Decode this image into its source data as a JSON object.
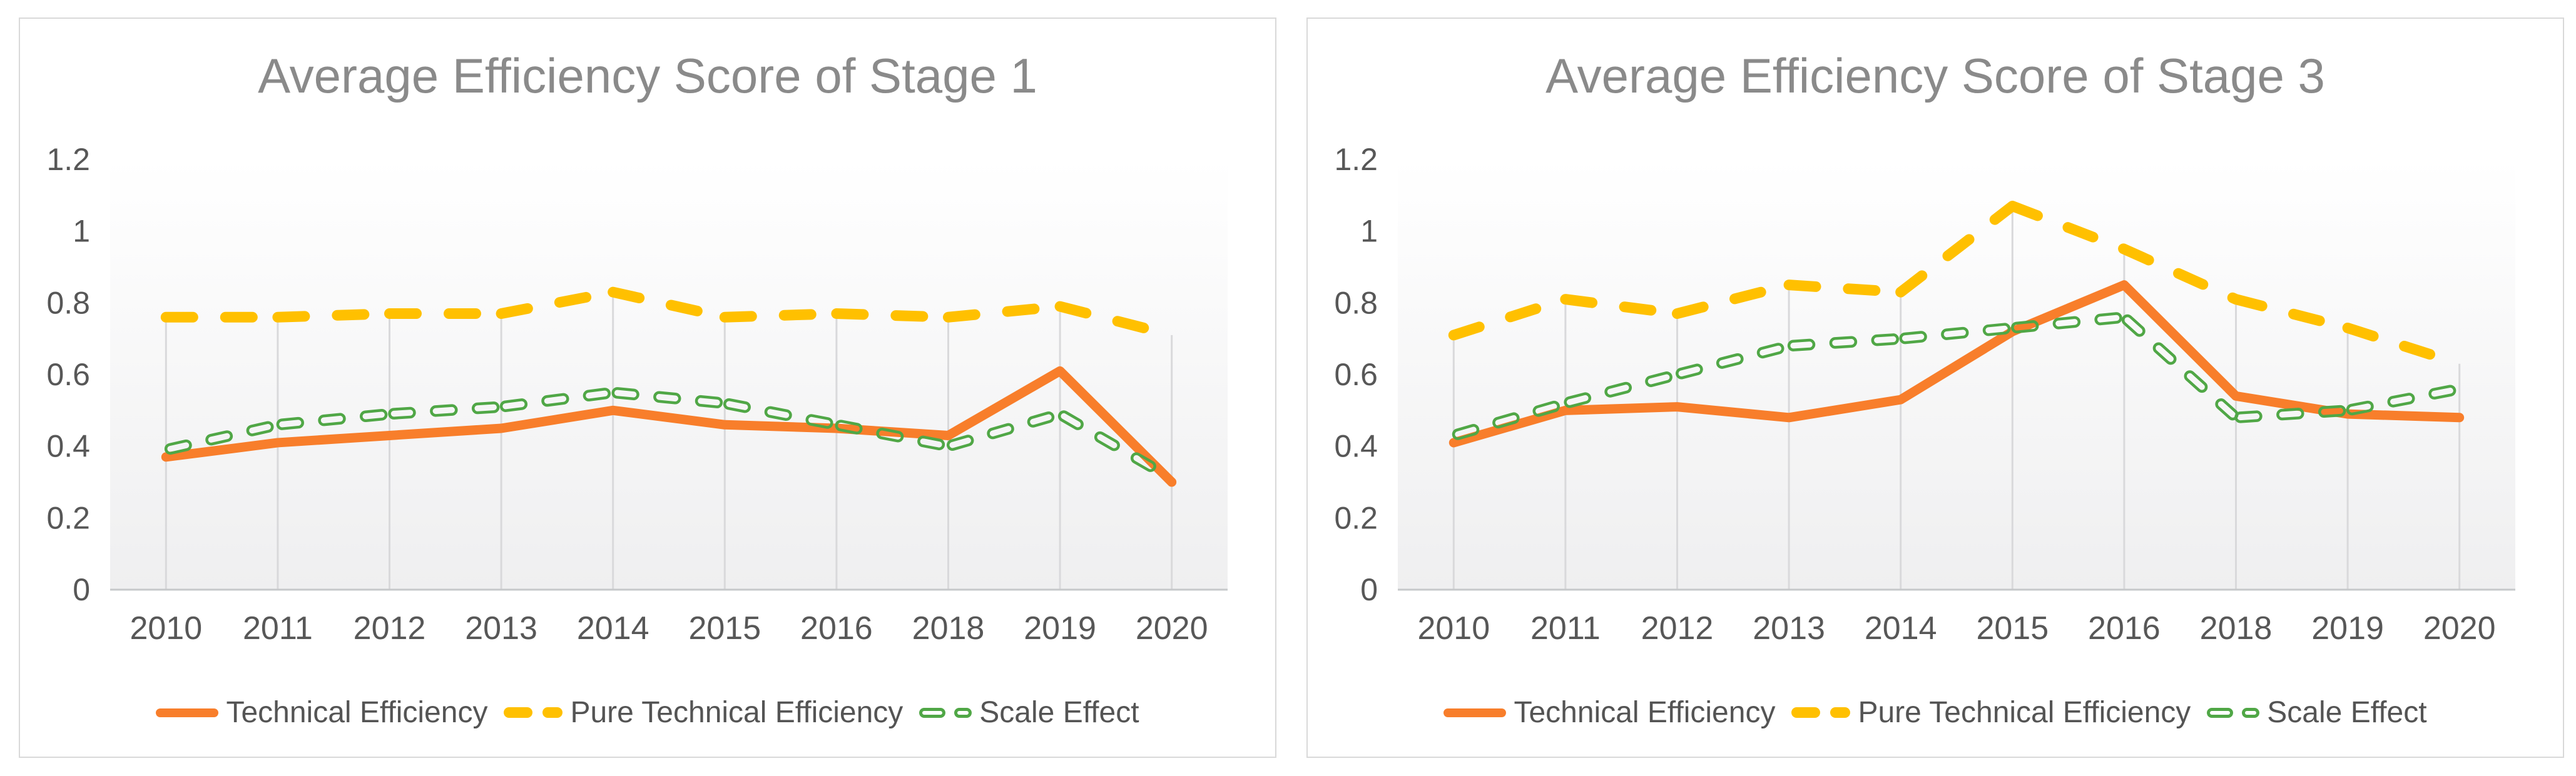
{
  "palette": {
    "page_background": "#FFFFFF",
    "panel_border": "#D9D9D9",
    "plot_bg_top": "#FFFFFF",
    "plot_bg_bottom": "#EFEFF0",
    "drop_line": "#D9D9DB",
    "axis_line": "#C6C8CA",
    "title_text": "#8A8A8A",
    "tick_text": "#575757",
    "legend_text": "#545454"
  },
  "chart_data": [
    {
      "type": "line",
      "title": "Average Efficiency Score of Stage 1",
      "categories": [
        "2010",
        "2011",
        "2012",
        "2013",
        "2014",
        "2015",
        "2016",
        "2018",
        "2019",
        "2020"
      ],
      "y_ticks": [
        "0",
        "0.2",
        "0.4",
        "0.6",
        "0.8",
        "1",
        "1.2"
      ],
      "ylim": [
        0,
        1.2
      ],
      "grid": "vertical-drop-lines",
      "legend_position": "bottom",
      "series": [
        {
          "name": "Technical Efficiency",
          "color": "#F87E2B",
          "line_style": "solid",
          "values": [
            0.37,
            0.41,
            0.43,
            0.45,
            0.5,
            0.46,
            0.45,
            0.43,
            0.61,
            0.3
          ]
        },
        {
          "name": "Pure Technical Efficiency",
          "color": "#FFC000",
          "line_style": "dashed",
          "values": [
            0.76,
            0.76,
            0.77,
            0.77,
            0.83,
            0.76,
            0.77,
            0.76,
            0.79,
            0.71
          ]
        },
        {
          "name": "Scale Effect",
          "color": "#50A746",
          "line_style": "hollow-dash",
          "values": [
            0.39,
            0.46,
            0.49,
            0.51,
            0.55,
            0.52,
            0.46,
            0.4,
            0.49,
            0.31
          ]
        }
      ]
    },
    {
      "type": "line",
      "title": "Average Efficiency Score of Stage 3",
      "categories": [
        "2010",
        "2011",
        "2012",
        "2013",
        "2014",
        "2015",
        "2016",
        "2018",
        "2019",
        "2020"
      ],
      "y_ticks": [
        "0",
        "0.2",
        "0.4",
        "0.6",
        "0.8",
        "1",
        "1.2"
      ],
      "ylim": [
        0,
        1.2
      ],
      "grid": "vertical-drop-lines",
      "legend_position": "bottom",
      "series": [
        {
          "name": "Technical Efficiency",
          "color": "#F87E2B",
          "line_style": "solid",
          "values": [
            0.41,
            0.5,
            0.51,
            0.48,
            0.53,
            0.72,
            0.85,
            0.54,
            0.49,
            0.48
          ]
        },
        {
          "name": "Pure Technical Efficiency",
          "color": "#FFC000",
          "line_style": "dashed",
          "values": [
            0.71,
            0.81,
            0.77,
            0.85,
            0.83,
            1.07,
            0.95,
            0.81,
            0.73,
            0.63
          ]
        },
        {
          "name": "Scale Effect",
          "color": "#50A746",
          "line_style": "hollow-dash",
          "values": [
            0.43,
            0.52,
            0.6,
            0.68,
            0.7,
            0.73,
            0.76,
            0.48,
            0.5,
            0.56
          ]
        }
      ]
    }
  ]
}
